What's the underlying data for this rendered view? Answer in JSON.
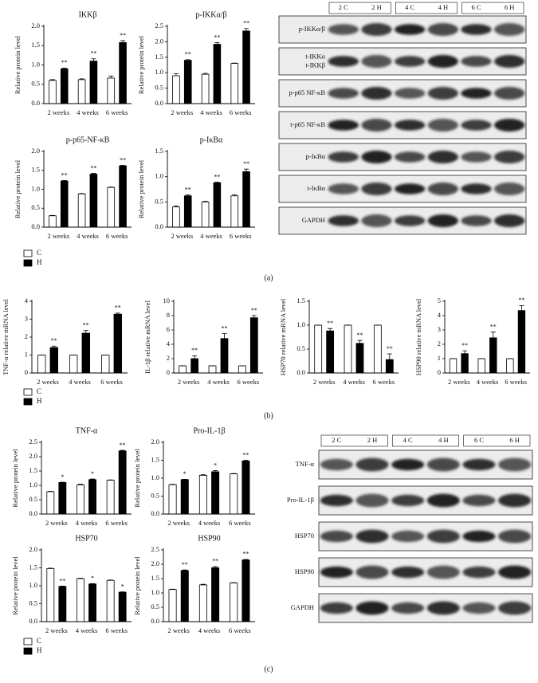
{
  "chart_data": [
    {
      "type": "bar",
      "title": "IKKβ",
      "ylabel": "Relative protein level",
      "categories": [
        "2 weeks",
        "4 weeks",
        "6 weeks"
      ],
      "ylim": [
        0,
        2
      ],
      "yticks": [
        {
          "value": 0,
          "label": "0.0"
        },
        0.5,
        {
          "value": 1,
          "label": "1.0"
        },
        1.5,
        {
          "value": 2,
          "label": "2.0"
        }
      ],
      "series": [
        {
          "name": "C",
          "color": "#ffffff",
          "values": [
            0.6,
            0.62,
            0.66
          ],
          "errors": [
            0.02,
            0.02,
            0.05
          ]
        },
        {
          "name": "H",
          "color": "#000000",
          "values": [
            0.9,
            1.1,
            1.58
          ],
          "errors": [
            0.02,
            0.06,
            0.05
          ],
          "sig": [
            "**",
            "**",
            "**"
          ]
        }
      ]
    },
    {
      "type": "bar",
      "title": "p-IKKα/β",
      "ylabel": "Relative protein level",
      "categories": [
        "2 weeks",
        "4 weeks",
        "6 weeks"
      ],
      "ylim": [
        0,
        2.5
      ],
      "yticks": [
        {
          "value": 0,
          "label": "0.0"
        },
        0.5,
        {
          "value": 1,
          "label": "1.0"
        },
        1.5,
        {
          "value": 2,
          "label": "2.0"
        },
        2.5
      ],
      "series": [
        {
          "color": "#ffffff",
          "values": [
            0.9,
            0.95,
            1.3
          ],
          "errors": [
            0.07,
            0.03,
            0.01
          ]
        },
        {
          "color": "#000000",
          "values": [
            1.4,
            1.92,
            2.35
          ],
          "errors": [
            0.02,
            0.05,
            0.08
          ],
          "sig": [
            "**",
            "**",
            "**"
          ]
        }
      ]
    },
    {
      "type": "bar",
      "title": "p-p65-NF-κB",
      "ylabel": "Relative protein level",
      "categories": [
        "2 weeks",
        "4 weeks",
        "6 weeks"
      ],
      "ylim": [
        0,
        2
      ],
      "yticks": [
        {
          "value": 0,
          "label": "0.0"
        },
        0.5,
        {
          "value": 1,
          "label": "1.0"
        },
        1.5,
        {
          "value": 2,
          "label": "2.0"
        }
      ],
      "series": [
        {
          "color": "#ffffff",
          "values": [
            0.3,
            0.88,
            1.05
          ],
          "errors": [
            0.01,
            0.01,
            0.01
          ]
        },
        {
          "color": "#000000",
          "values": [
            1.22,
            1.4,
            1.62
          ],
          "errors": [
            0.01,
            0.02,
            0.01
          ],
          "sig": [
            "**",
            "**",
            "**"
          ]
        }
      ]
    },
    {
      "type": "bar",
      "title": "p-IκBα",
      "ylabel": "Relative protein level",
      "categories": [
        "2 weeks",
        "4 weeks",
        "6 weeks"
      ],
      "ylim": [
        0,
        1.5
      ],
      "yticks": [
        {
          "value": 0,
          "label": "0.0"
        },
        0.5,
        {
          "value": 1,
          "label": "1.0"
        },
        1.5
      ],
      "series": [
        {
          "color": "#ffffff",
          "values": [
            0.4,
            0.5,
            0.62
          ],
          "errors": [
            0.02,
            0.01,
            0.02
          ]
        },
        {
          "color": "#000000",
          "values": [
            0.62,
            0.88,
            1.1
          ],
          "errors": [
            0.02,
            0.01,
            0.05
          ],
          "sig": [
            "**",
            "**",
            "**"
          ]
        }
      ]
    },
    {
      "type": "bar",
      "ylabel": "TNF-α relative mRNA level",
      "categories": [
        "2 weeks",
        "4 weeks",
        "6 weeks"
      ],
      "ylim": [
        0,
        4
      ],
      "yticks": [
        0,
        1,
        2,
        3,
        4
      ],
      "series": [
        {
          "name": "C",
          "color": "#ffffff",
          "values": [
            1,
            1,
            1
          ],
          "errors": [
            0,
            0,
            0
          ]
        },
        {
          "name": "H",
          "color": "#000000",
          "values": [
            1.42,
            2.22,
            3.28
          ],
          "errors": [
            0.08,
            0.15,
            0.06
          ],
          "sig": [
            "**",
            "**",
            "**"
          ]
        }
      ]
    },
    {
      "type": "bar",
      "ylabel": "IL-1β relative mRNA level",
      "categories": [
        "2 weeks",
        "4 weeks",
        "6 weeks"
      ],
      "ylim": [
        0,
        10
      ],
      "yticks": [
        0,
        2,
        4,
        6,
        8,
        10
      ],
      "series": [
        {
          "color": "#ffffff",
          "values": [
            1,
            1,
            1
          ],
          "errors": [
            0,
            0,
            0
          ]
        },
        {
          "color": "#000000",
          "values": [
            2,
            4.8,
            7.7
          ],
          "errors": [
            0.4,
            0.7,
            0.3
          ],
          "sig": [
            "**",
            "**",
            "**"
          ]
        }
      ]
    },
    {
      "type": "bar",
      "ylabel": "HSP70 relative mRNA level",
      "categories": [
        "2 weeks",
        "4 weeks",
        "6 weeks"
      ],
      "ylim": [
        0,
        1.5
      ],
      "yticks": [
        {
          "value": 0,
          "label": "0.0"
        },
        0.5,
        {
          "value": 1,
          "label": "1.0"
        },
        1.5
      ],
      "series": [
        {
          "color": "#ffffff",
          "values": [
            1,
            1,
            1
          ],
          "errors": [
            0,
            0,
            0
          ]
        },
        {
          "color": "#000000",
          "values": [
            0.88,
            0.62,
            0.28
          ],
          "errors": [
            0.05,
            0.06,
            0.12
          ],
          "sig": [
            "**",
            "**",
            "**"
          ]
        }
      ]
    },
    {
      "type": "bar",
      "ylabel": "HSP90 relative mRNA level",
      "categories": [
        "2 weeks",
        "4 weeks",
        "6 weeks"
      ],
      "ylim": [
        0,
        5
      ],
      "yticks": [
        0,
        1,
        2,
        3,
        4,
        5
      ],
      "series": [
        {
          "color": "#ffffff",
          "values": [
            1,
            1,
            1
          ],
          "errors": [
            0,
            0,
            0
          ]
        },
        {
          "color": "#000000",
          "values": [
            1.35,
            2.45,
            4.35
          ],
          "errors": [
            0.2,
            0.4,
            0.35
          ],
          "sig": [
            "**",
            "**",
            "**"
          ]
        }
      ]
    },
    {
      "type": "bar",
      "title": "TNF-α",
      "ylabel": "Relative protein level",
      "categories": [
        "2 weeks",
        "4 weeks",
        "6 weeks"
      ],
      "ylim": [
        0,
        2.5
      ],
      "yticks": [
        {
          "value": 0,
          "label": "0.0"
        },
        0.5,
        {
          "value": 1,
          "label": "1.0"
        },
        1.5,
        {
          "value": 2,
          "label": "2.0"
        },
        2.5
      ],
      "series": [
        {
          "name": "C",
          "color": "#ffffff",
          "values": [
            0.78,
            1.02,
            1.18
          ],
          "errors": [
            0.01,
            0.02,
            0.01
          ]
        },
        {
          "name": "H",
          "color": "#000000",
          "values": [
            1.1,
            1.2,
            2.2
          ],
          "errors": [
            0.01,
            0.02,
            0.02
          ],
          "sig": [
            "*",
            "*",
            "**"
          ]
        }
      ]
    },
    {
      "type": "bar",
      "title": "Pro-IL-1β",
      "ylabel": "Relative protein level",
      "categories": [
        "2 weeks",
        "4 weeks",
        "6 weeks"
      ],
      "ylim": [
        0,
        2
      ],
      "yticks": [
        {
          "value": 0,
          "label": "0.0"
        },
        0.5,
        {
          "value": 1,
          "label": "1.0"
        },
        1.5,
        {
          "value": 2,
          "label": "2.0"
        }
      ],
      "series": [
        {
          "color": "#ffffff",
          "values": [
            0.82,
            1.08,
            1.12
          ],
          "errors": [
            0.01,
            0.02,
            0.01
          ]
        },
        {
          "color": "#000000",
          "values": [
            0.96,
            1.18,
            1.48
          ],
          "errors": [
            0.01,
            0.03,
            0.02
          ],
          "sig": [
            "*",
            "*",
            "**"
          ]
        }
      ]
    },
    {
      "type": "bar",
      "title": "HSP70",
      "ylabel": "Relative protein level",
      "categories": [
        "2 weeks",
        "4 weeks",
        "6 weeks"
      ],
      "ylim": [
        0,
        2
      ],
      "yticks": [
        {
          "value": 0,
          "label": "0.0"
        },
        0.5,
        {
          "value": 1,
          "label": "1.0"
        },
        1.5,
        {
          "value": 2,
          "label": "2.0"
        }
      ],
      "series": [
        {
          "color": "#ffffff",
          "values": [
            1.48,
            1.2,
            1.15
          ],
          "errors": [
            0.01,
            0.01,
            0.01
          ]
        },
        {
          "color": "#000000",
          "values": [
            0.98,
            1.05,
            0.82
          ],
          "errors": [
            0.01,
            0.01,
            0.01
          ],
          "sig": [
            "**",
            "*",
            "*"
          ]
        }
      ]
    },
    {
      "type": "bar",
      "title": "HSP90",
      "ylabel": "Relative protein level",
      "categories": [
        "2 weeks",
        "4 weeks",
        "6 weeks"
      ],
      "ylim": [
        0,
        2.5
      ],
      "yticks": [
        {
          "value": 0,
          "label": "0.0"
        },
        0.5,
        {
          "value": 1,
          "label": "1.0"
        },
        1.5,
        {
          "value": 2,
          "label": "2.0"
        },
        2.5
      ],
      "series": [
        {
          "color": "#ffffff",
          "values": [
            1.12,
            1.28,
            1.35
          ],
          "errors": [
            0.01,
            0.02,
            0.01
          ]
        },
        {
          "color": "#000000",
          "values": [
            1.78,
            1.88,
            2.15
          ],
          "errors": [
            0.02,
            0.04,
            0.02
          ],
          "sig": [
            "**",
            "**",
            "**"
          ]
        }
      ]
    }
  ],
  "blots": [
    {
      "lanes": [
        "2 C",
        "2 H",
        "4 C",
        "4 H",
        "6 C",
        "6 H"
      ],
      "rows": [
        [
          "p-IKKα/β"
        ],
        [
          "t-IKKα",
          "t-IKKβ"
        ],
        [
          "p-p65 NF-κB"
        ],
        [
          "t-p65 NF-κB"
        ],
        [
          "p-IκBα"
        ],
        [
          "t-IκBα"
        ],
        [
          "GAPDH"
        ]
      ]
    },
    {
      "lanes": [
        "2 C",
        "2 H",
        "4 C",
        "4 H",
        "6 C",
        "6 H"
      ],
      "rows": [
        [
          "TNF-α"
        ],
        [
          "Pro-IL-1β"
        ],
        [
          "HSP70"
        ],
        [
          "HSP90"
        ],
        [
          "GAPDH"
        ]
      ]
    }
  ],
  "panel_labels": [
    "(a)",
    "(b)",
    "(c)"
  ]
}
